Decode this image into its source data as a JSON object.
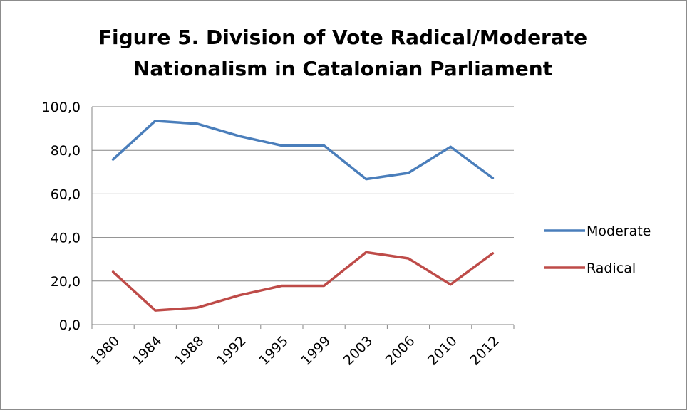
{
  "chart_data": {
    "type": "line",
    "title_line1": "Figure 5. Division of Vote Radical/Moderate",
    "title_line2": "Nationalism in Catalonian Parliament",
    "categories": [
      "1980",
      "1984",
      "1988",
      "1992",
      "1995",
      "1999",
      "2003",
      "2006",
      "2010",
      "2012"
    ],
    "series": [
      {
        "name": "Moderate",
        "color": "#4a7ebb",
        "values": [
          75.8,
          93.5,
          92.2,
          86.5,
          82.2,
          82.2,
          66.8,
          69.6,
          81.6,
          67.3
        ]
      },
      {
        "name": "Radical",
        "color": "#be4b48",
        "values": [
          24.2,
          6.5,
          7.8,
          13.5,
          17.8,
          17.8,
          33.2,
          30.4,
          18.4,
          32.7
        ]
      }
    ],
    "ylim": [
      0,
      100
    ],
    "yticks": [
      "0,0",
      "20,0",
      "40,0",
      "60,0",
      "80,0",
      "100,0"
    ],
    "grid": true,
    "legend_position": "right"
  }
}
